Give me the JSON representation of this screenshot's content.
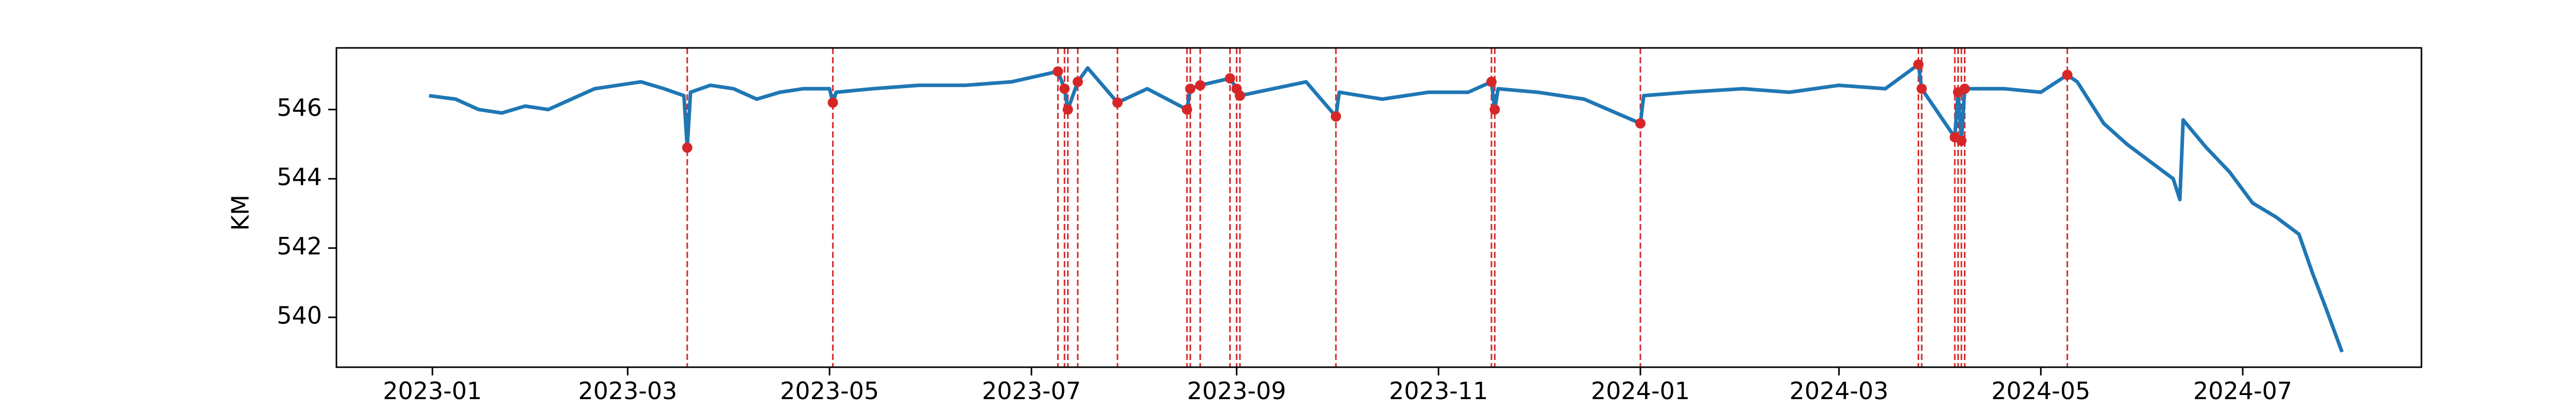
{
  "chart_data": {
    "type": "line",
    "ylabel": "KM",
    "color": "#1f77b4",
    "x": [
      "2022-12-31",
      "2023-01-08",
      "2023-01-15",
      "2023-01-22",
      "2023-01-29",
      "2023-02-05",
      "2023-02-12",
      "2023-02-19",
      "2023-02-26",
      "2023-03-05",
      "2023-03-12",
      "2023-03-18",
      "2023-03-19",
      "2023-03-20",
      "2023-03-26",
      "2023-04-02",
      "2023-04-09",
      "2023-04-16",
      "2023-04-23",
      "2023-05-01",
      "2023-05-02",
      "2023-05-03",
      "2023-05-14",
      "2023-05-28",
      "2023-06-11",
      "2023-06-25",
      "2023-07-09",
      "2023-07-11",
      "2023-07-12",
      "2023-07-15",
      "2023-07-18",
      "2023-07-27",
      "2023-08-05",
      "2023-08-17",
      "2023-08-18",
      "2023-08-21",
      "2023-08-30",
      "2023-09-01",
      "2023-09-02",
      "2023-09-12",
      "2023-09-22",
      "2023-10-01",
      "2023-10-02",
      "2023-10-15",
      "2023-10-29",
      "2023-11-10",
      "2023-11-17",
      "2023-11-18",
      "2023-11-19",
      "2023-12-01",
      "2023-12-15",
      "2024-01-01",
      "2024-01-02",
      "2024-01-15",
      "2024-02-01",
      "2024-02-15",
      "2024-03-01",
      "2024-03-15",
      "2024-03-25",
      "2024-03-26",
      "2024-04-05",
      "2024-04-06",
      "2024-04-07",
      "2024-04-08",
      "2024-04-20",
      "2024-05-01",
      "2024-05-09",
      "2024-05-12",
      "2024-05-20",
      "2024-05-27",
      "2024-06-03",
      "2024-06-10",
      "2024-06-12",
      "2024-06-13",
      "2024-06-20",
      "2024-06-27",
      "2024-07-04",
      "2024-07-11",
      "2024-07-18",
      "2024-07-22",
      "2024-07-26",
      "2024-07-31"
    ],
    "values": [
      546.4,
      546.3,
      546.0,
      545.9,
      546.1,
      546.0,
      546.3,
      546.6,
      546.7,
      546.8,
      546.6,
      546.4,
      544.9,
      546.5,
      546.7,
      546.6,
      546.3,
      546.5,
      546.6,
      546.6,
      546.2,
      546.5,
      546.6,
      546.7,
      546.7,
      546.8,
      547.1,
      546.6,
      546.0,
      546.8,
      547.2,
      546.2,
      546.6,
      546.0,
      546.6,
      546.7,
      546.9,
      546.6,
      546.4,
      546.6,
      546.8,
      545.8,
      546.5,
      546.3,
      546.5,
      546.5,
      546.8,
      546.0,
      546.6,
      546.5,
      546.3,
      545.6,
      546.4,
      546.5,
      546.6,
      546.5,
      546.7,
      546.6,
      547.3,
      546.6,
      545.2,
      546.5,
      545.1,
      546.6,
      546.6,
      546.5,
      547.0,
      546.8,
      545.6,
      545.0,
      544.5,
      544.0,
      543.4,
      545.7,
      544.9,
      544.2,
      543.3,
      542.9,
      542.4,
      541.3,
      540.3,
      539.0
    ],
    "events": {
      "color": "#d62728",
      "x": [
        "2023-03-19",
        "2023-05-02",
        "2023-07-09",
        "2023-07-11",
        "2023-07-12",
        "2023-07-15",
        "2023-07-27",
        "2023-08-17",
        "2023-08-18",
        "2023-08-21",
        "2023-08-30",
        "2023-09-01",
        "2023-09-02",
        "2023-10-01",
        "2023-11-17",
        "2023-11-18",
        "2024-01-01",
        "2024-03-25",
        "2024-03-26",
        "2024-04-05",
        "2024-04-06",
        "2024-04-07",
        "2024-04-08",
        "2024-05-09"
      ],
      "values": [
        544.9,
        546.2,
        547.1,
        546.6,
        546.0,
        546.8,
        546.2,
        546.0,
        546.6,
        546.7,
        546.9,
        546.6,
        546.4,
        545.8,
        546.8,
        546.0,
        545.6,
        547.3,
        546.6,
        545.2,
        546.5,
        545.1,
        546.6,
        547.0
      ]
    },
    "xlim": [
      "2022-12-03",
      "2024-08-24"
    ],
    "xticks": [
      {
        "value": "2023-01-01",
        "label": "2023-01"
      },
      {
        "value": "2023-03-01",
        "label": "2023-03"
      },
      {
        "value": "2023-05-01",
        "label": "2023-05"
      },
      {
        "value": "2023-07-01",
        "label": "2023-07"
      },
      {
        "value": "2023-09-01",
        "label": "2023-09"
      },
      {
        "value": "2023-11-01",
        "label": "2023-11"
      },
      {
        "value": "2024-01-01",
        "label": "2024-01"
      },
      {
        "value": "2024-03-01",
        "label": "2024-03"
      },
      {
        "value": "2024-05-01",
        "label": "2024-05"
      },
      {
        "value": "2024-07-01",
        "label": "2024-07"
      }
    ],
    "ylim": [
      538.56,
      547.78
    ],
    "yticks": [
      540,
      542,
      544,
      546
    ]
  }
}
